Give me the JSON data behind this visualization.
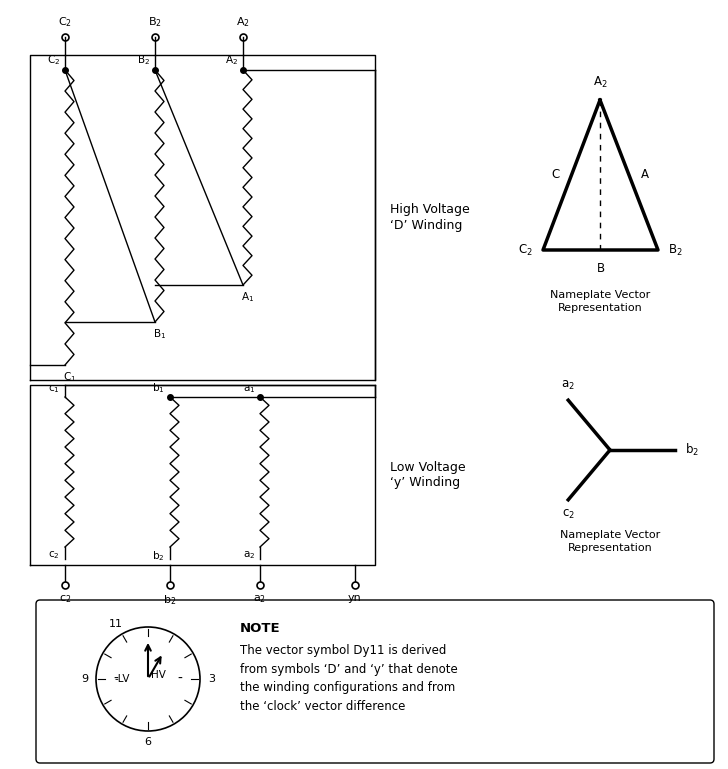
{
  "bg_color": "#ffffff",
  "fig_width": 7.28,
  "fig_height": 7.69,
  "dpi": 100,
  "hv_label": "High Voltage\n‘D’ Winding",
  "lv_label": "Low Voltage\n‘y’ Winding",
  "note_text": "The vector symbol Dy11 is derived\nfrom symbols ‘D’ and ‘y’ that denote\nthe winding configurations and from\nthe ‘clock’ vector difference"
}
